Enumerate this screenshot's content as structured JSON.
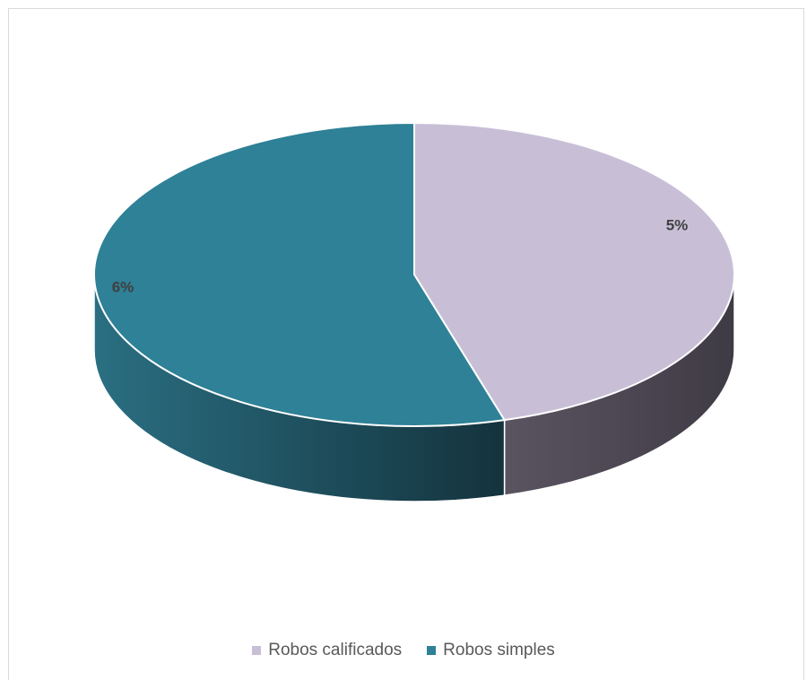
{
  "chart_data": {
    "type": "pie",
    "style": "3d",
    "categories": [
      "Robos calificados",
      "Robos simples"
    ],
    "values": [
      5,
      6
    ],
    "data_labels": [
      "5%",
      "6%"
    ],
    "colors": [
      "#c8bfd7",
      "#2e8196"
    ],
    "legend_position": "bottom",
    "title": ""
  }
}
